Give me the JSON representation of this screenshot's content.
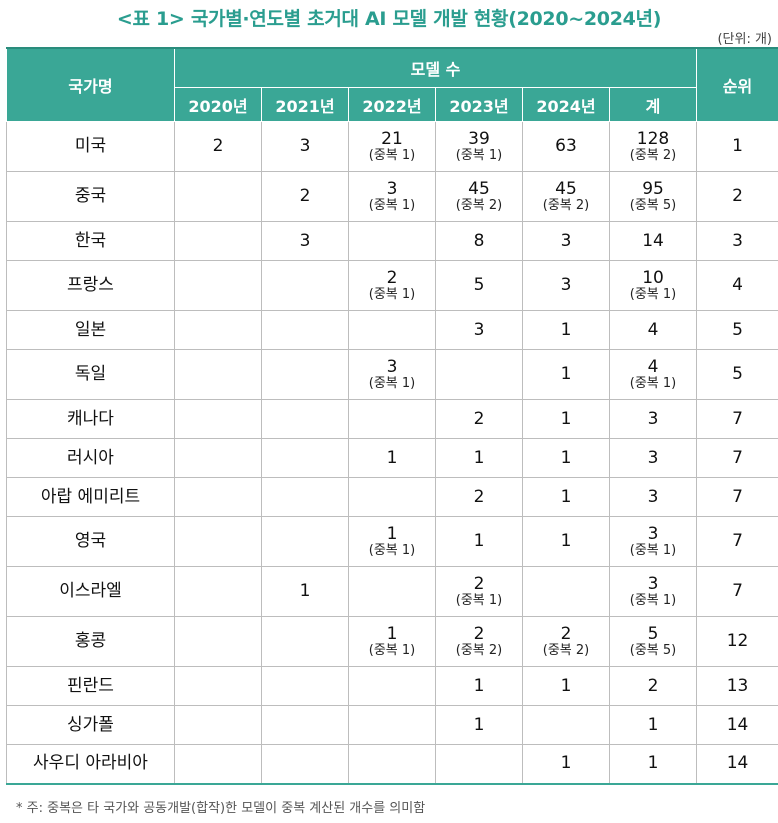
{
  "title": "<표 1> 국가별·연도별 초거대 AI 모델 개발 현황(2020~2024년)",
  "unit": "(단위: 개)",
  "header": {
    "country": "국가명",
    "models": "모델 수",
    "rank": "순위",
    "years": [
      "2020년",
      "2021년",
      "2022년",
      "2023년",
      "2024년",
      "계"
    ]
  },
  "rows": [
    {
      "country": "미국",
      "cells": [
        {
          "v": "2",
          "d": ""
        },
        {
          "v": "3",
          "d": ""
        },
        {
          "v": "21",
          "d": "(중복 1)"
        },
        {
          "v": "39",
          "d": "(중복 1)"
        },
        {
          "v": "63",
          "d": ""
        },
        {
          "v": "128",
          "d": "(중복 2)"
        }
      ],
      "rank": "1"
    },
    {
      "country": "중국",
      "cells": [
        {
          "v": "",
          "d": ""
        },
        {
          "v": "2",
          "d": ""
        },
        {
          "v": "3",
          "d": "(중복 1)"
        },
        {
          "v": "45",
          "d": "(중복 2)"
        },
        {
          "v": "45",
          "d": "(중복 2)"
        },
        {
          "v": "95",
          "d": "(중복 5)"
        }
      ],
      "rank": "2"
    },
    {
      "country": "한국",
      "cells": [
        {
          "v": "",
          "d": ""
        },
        {
          "v": "3",
          "d": ""
        },
        {
          "v": "",
          "d": ""
        },
        {
          "v": "8",
          "d": ""
        },
        {
          "v": "3",
          "d": ""
        },
        {
          "v": "14",
          "d": ""
        }
      ],
      "rank": "3"
    },
    {
      "country": "프랑스",
      "cells": [
        {
          "v": "",
          "d": ""
        },
        {
          "v": "",
          "d": ""
        },
        {
          "v": "2",
          "d": "(중복 1)"
        },
        {
          "v": "5",
          "d": ""
        },
        {
          "v": "3",
          "d": ""
        },
        {
          "v": "10",
          "d": "(중복 1)"
        }
      ],
      "rank": "4"
    },
    {
      "country": "일본",
      "cells": [
        {
          "v": "",
          "d": ""
        },
        {
          "v": "",
          "d": ""
        },
        {
          "v": "",
          "d": ""
        },
        {
          "v": "3",
          "d": ""
        },
        {
          "v": "1",
          "d": ""
        },
        {
          "v": "4",
          "d": ""
        }
      ],
      "rank": "5"
    },
    {
      "country": "독일",
      "cells": [
        {
          "v": "",
          "d": ""
        },
        {
          "v": "",
          "d": ""
        },
        {
          "v": "3",
          "d": "(중복 1)"
        },
        {
          "v": "",
          "d": ""
        },
        {
          "v": "1",
          "d": ""
        },
        {
          "v": "4",
          "d": "(중복 1)"
        }
      ],
      "rank": "5"
    },
    {
      "country": "캐나다",
      "cells": [
        {
          "v": "",
          "d": ""
        },
        {
          "v": "",
          "d": ""
        },
        {
          "v": "",
          "d": ""
        },
        {
          "v": "2",
          "d": ""
        },
        {
          "v": "1",
          "d": ""
        },
        {
          "v": "3",
          "d": ""
        }
      ],
      "rank": "7"
    },
    {
      "country": "러시아",
      "cells": [
        {
          "v": "",
          "d": ""
        },
        {
          "v": "",
          "d": ""
        },
        {
          "v": "1",
          "d": ""
        },
        {
          "v": "1",
          "d": ""
        },
        {
          "v": "1",
          "d": ""
        },
        {
          "v": "3",
          "d": ""
        }
      ],
      "rank": "7"
    },
    {
      "country": "아랍 에미리트",
      "cells": [
        {
          "v": "",
          "d": ""
        },
        {
          "v": "",
          "d": ""
        },
        {
          "v": "",
          "d": ""
        },
        {
          "v": "2",
          "d": ""
        },
        {
          "v": "1",
          "d": ""
        },
        {
          "v": "3",
          "d": ""
        }
      ],
      "rank": "7"
    },
    {
      "country": "영국",
      "cells": [
        {
          "v": "",
          "d": ""
        },
        {
          "v": "",
          "d": ""
        },
        {
          "v": "1",
          "d": "(중복 1)"
        },
        {
          "v": "1",
          "d": ""
        },
        {
          "v": "1",
          "d": ""
        },
        {
          "v": "3",
          "d": "(중복 1)"
        }
      ],
      "rank": "7"
    },
    {
      "country": "이스라엘",
      "cells": [
        {
          "v": "",
          "d": ""
        },
        {
          "v": "1",
          "d": ""
        },
        {
          "v": "",
          "d": ""
        },
        {
          "v": "2",
          "d": "(중복 1)"
        },
        {
          "v": "",
          "d": ""
        },
        {
          "v": "3",
          "d": "(중복 1)"
        }
      ],
      "rank": "7"
    },
    {
      "country": "홍콩",
      "cells": [
        {
          "v": "",
          "d": ""
        },
        {
          "v": "",
          "d": ""
        },
        {
          "v": "1",
          "d": "(중복 1)"
        },
        {
          "v": "2",
          "d": "(중복 2)"
        },
        {
          "v": "2",
          "d": "(중복 2)"
        },
        {
          "v": "5",
          "d": "(중복 5)"
        }
      ],
      "rank": "12"
    },
    {
      "country": "핀란드",
      "cells": [
        {
          "v": "",
          "d": ""
        },
        {
          "v": "",
          "d": ""
        },
        {
          "v": "",
          "d": ""
        },
        {
          "v": "1",
          "d": ""
        },
        {
          "v": "1",
          "d": ""
        },
        {
          "v": "2",
          "d": ""
        }
      ],
      "rank": "13"
    },
    {
      "country": "싱가폴",
      "cells": [
        {
          "v": "",
          "d": ""
        },
        {
          "v": "",
          "d": ""
        },
        {
          "v": "",
          "d": ""
        },
        {
          "v": "1",
          "d": ""
        },
        {
          "v": "",
          "d": ""
        },
        {
          "v": "1",
          "d": ""
        }
      ],
      "rank": "14"
    },
    {
      "country": "사우디 아라비아",
      "cells": [
        {
          "v": "",
          "d": ""
        },
        {
          "v": "",
          "d": ""
        },
        {
          "v": "",
          "d": ""
        },
        {
          "v": "",
          "d": ""
        },
        {
          "v": "1",
          "d": ""
        },
        {
          "v": "1",
          "d": ""
        }
      ],
      "rank": "14"
    }
  ],
  "footnote": "* 주: 중복은 타 국가와 공동개발(합작)한 모델이 중복 계산된 개수를 의미함"
}
